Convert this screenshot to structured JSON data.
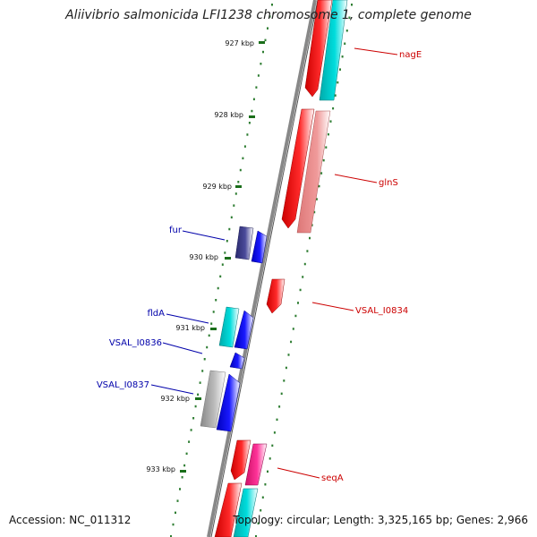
{
  "title": "Aliivibrio salmonicida LFI1238 chromosome 1, complete genome",
  "footer": {
    "accession": "Accession: NC_011312",
    "info": "Topology: circular; Length: 3,325,165 bp; Genes: 2,966"
  },
  "kbp_labels": [
    "927 kbp",
    "928 kbp",
    "929 kbp",
    "930 kbp",
    "931 kbp",
    "932 kbp",
    "933 kbp"
  ],
  "gene_labels": [
    "nagE",
    "glnS",
    "VSAL_I0834",
    "seqA",
    "fur",
    "fldA",
    "VSAL_I0836",
    "VSAL_I0837"
  ],
  "colors": {
    "backbone": "#888888",
    "tick": "#2e7d32",
    "right_label": "#cc0000",
    "left_label": "#0000aa",
    "red": "#ff0000",
    "pink": "#ee8888",
    "cyan": "#00cccc",
    "blue": "#0000ee",
    "navy": "#3a3a8a",
    "gray": "#aaaaaa",
    "magenta": "#ee2288"
  }
}
